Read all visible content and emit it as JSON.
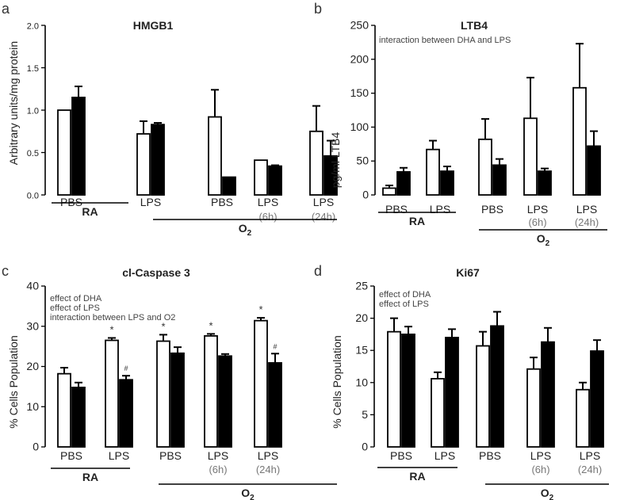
{
  "chart_data": [
    {
      "panel_letter": "a",
      "type": "bar",
      "title": "HMGB1",
      "ylabel": "Arbitrary units/mg protein",
      "ylim": [
        0,
        2.0
      ],
      "yticks": [
        "0.0",
        "0.5",
        "1.0",
        "1.5",
        "2.0"
      ],
      "ytick_values": [
        0,
        0.5,
        1.0,
        1.5,
        2.0
      ],
      "categories": [
        "PBS",
        "LPS",
        "PBS",
        "LPS",
        "LPS"
      ],
      "category_sublabels": [
        "",
        "",
        "",
        "(6h)",
        "(24h)"
      ],
      "series": [
        {
          "name": "open",
          "values": [
            1.0,
            0.72,
            0.92,
            0.41,
            0.75
          ],
          "errors": [
            0,
            0.15,
            0.32,
            0,
            0.3
          ]
        },
        {
          "name": "filled",
          "values": [
            1.15,
            0.83,
            0.21,
            0.34,
            0.46
          ],
          "errors": [
            0.13,
            0.02,
            0,
            0.01,
            0.18
          ]
        }
      ],
      "group_labels": [
        {
          "label": "RA",
          "from": 0,
          "to": 1
        },
        {
          "label": "O",
          "sub": "2",
          "from": 2,
          "to": 4
        }
      ],
      "annotations": [],
      "markers": []
    },
    {
      "panel_letter": "b",
      "type": "bar",
      "title": "LTB4",
      "ylabel": "pg/ml LTB4",
      "ylim": [
        0,
        250
      ],
      "yticks": [
        "0",
        "50",
        "100",
        "150",
        "200",
        "250"
      ],
      "ytick_values": [
        0,
        50,
        100,
        150,
        200,
        250
      ],
      "categories": [
        "PBS",
        "LPS",
        "PBS",
        "LPS",
        "LPS"
      ],
      "category_sublabels": [
        "",
        "",
        "",
        "(6h)",
        "(24h)"
      ],
      "series": [
        {
          "name": "open",
          "values": [
            10,
            67,
            82,
            113,
            158
          ],
          "errors": [
            4,
            13,
            30,
            60,
            65
          ]
        },
        {
          "name": "filled",
          "values": [
            34,
            35,
            44,
            35,
            72
          ],
          "errors": [
            6,
            7,
            9,
            4,
            22
          ]
        }
      ],
      "group_labels": [
        {
          "label": "RA",
          "from": 0,
          "to": 1
        },
        {
          "label": "O",
          "sub": "2",
          "from": 2,
          "to": 4
        }
      ],
      "annotations": [
        "interaction between DHA and LPS"
      ],
      "markers": []
    },
    {
      "panel_letter": "c",
      "type": "bar",
      "title": "cl-Caspase 3",
      "ylabel": "% Cells Population",
      "ylim": [
        0,
        40
      ],
      "yticks": [
        "0",
        "10",
        "20",
        "30",
        "40"
      ],
      "ytick_values": [
        0,
        10,
        20,
        30,
        40
      ],
      "categories": [
        "PBS",
        "LPS",
        "PBS",
        "LPS",
        "LPS"
      ],
      "category_sublabels": [
        "",
        "",
        "",
        "(6h)",
        "(24h)"
      ],
      "series": [
        {
          "name": "open",
          "values": [
            18.2,
            26.5,
            26.3,
            27.6,
            31.4
          ],
          "errors": [
            1.5,
            0.6,
            1.6,
            0.5,
            0.7
          ]
        },
        {
          "name": "filled",
          "values": [
            14.8,
            16.7,
            23.3,
            22.6,
            20.9
          ],
          "errors": [
            1.2,
            1.0,
            1.5,
            0.5,
            2.3
          ]
        }
      ],
      "group_labels": [
        {
          "label": "RA",
          "from": 0,
          "to": 1
        },
        {
          "label": "O",
          "sub": "2",
          "from": 2,
          "to": 4
        }
      ],
      "annotations": [
        "effect of DHA",
        "effect of LPS",
        "interaction between LPS and O2"
      ],
      "markers": [
        {
          "category": 1,
          "series": 0,
          "symbol": "*"
        },
        {
          "category": 1,
          "series": 1,
          "symbol": "#"
        },
        {
          "category": 2,
          "series": 0,
          "symbol": "*"
        },
        {
          "category": 3,
          "series": 0,
          "symbol": "*"
        },
        {
          "category": 4,
          "series": 0,
          "symbol": "*"
        },
        {
          "category": 4,
          "series": 1,
          "symbol": "#"
        }
      ]
    },
    {
      "panel_letter": "d",
      "type": "bar",
      "title": "Ki67",
      "ylabel": "% Cells Population",
      "ylim": [
        0,
        25
      ],
      "yticks": [
        "0",
        "5",
        "10",
        "15",
        "20",
        "25"
      ],
      "ytick_values": [
        0,
        5,
        10,
        15,
        20,
        25
      ],
      "categories": [
        "PBS",
        "LPS",
        "PBS",
        "LPS",
        "LPS"
      ],
      "category_sublabels": [
        "",
        "",
        "",
        "(6h)",
        "(24h)"
      ],
      "series": [
        {
          "name": "open",
          "values": [
            17.9,
            10.6,
            15.7,
            12.1,
            8.9
          ],
          "errors": [
            2.1,
            1.0,
            2.2,
            1.8,
            1.1
          ]
        },
        {
          "name": "filled",
          "values": [
            17.5,
            17.0,
            18.8,
            16.3,
            14.9
          ],
          "errors": [
            1.2,
            1.3,
            2.2,
            2.2,
            1.7
          ]
        }
      ],
      "group_labels": [
        {
          "label": "RA",
          "from": 0,
          "to": 1
        },
        {
          "label": "O",
          "sub": "2",
          "from": 2,
          "to": 4
        }
      ],
      "annotations": [
        "effect of DHA",
        "effect of LPS"
      ],
      "markers": []
    }
  ]
}
